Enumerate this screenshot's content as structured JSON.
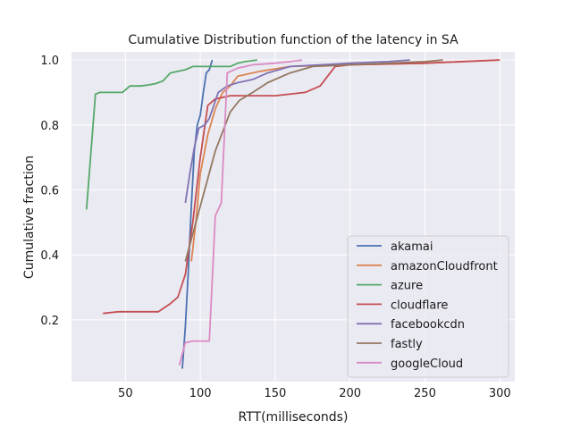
{
  "chart_data": {
    "type": "line",
    "title": "Cumulative Distribution function of the latency in SA",
    "xlabel": "RTT(milliseconds)",
    "ylabel": "Cumulative fraction",
    "xlim": [
      14,
      310
    ],
    "ylim": [
      0.01,
      1.025
    ],
    "xticks": [
      50,
      100,
      150,
      200,
      250,
      300
    ],
    "yticks": [
      0.2,
      0.4,
      0.6,
      0.8,
      1.0
    ],
    "xtick_labels": [
      "50",
      "100",
      "150",
      "200",
      "250",
      "300"
    ],
    "ytick_labels": [
      "0.2",
      "0.4",
      "0.6",
      "0.8",
      "1.0"
    ],
    "grid": true,
    "background": "#eaeaf2",
    "grid_color": "#ffffff",
    "legend_position": "lower-right",
    "series": [
      {
        "name": "akamai",
        "color": "#4c72b0",
        "points": [
          [
            88,
            0.05
          ],
          [
            90,
            0.18
          ],
          [
            92,
            0.35
          ],
          [
            94,
            0.55
          ],
          [
            96,
            0.72
          ],
          [
            98,
            0.8
          ],
          [
            100,
            0.83
          ],
          [
            102,
            0.9
          ],
          [
            104,
            0.96
          ],
          [
            106,
            0.97
          ],
          [
            108,
            1.0
          ]
        ]
      },
      {
        "name": "amazonCloudfront",
        "color": "#dd8452",
        "points": [
          [
            94,
            0.38
          ],
          [
            97,
            0.5
          ],
          [
            100,
            0.65
          ],
          [
            105,
            0.77
          ],
          [
            110,
            0.85
          ],
          [
            115,
            0.9
          ],
          [
            120,
            0.92
          ],
          [
            125,
            0.95
          ],
          [
            140,
            0.965
          ],
          [
            160,
            0.98
          ],
          [
            200,
            0.985
          ],
          [
            250,
            0.99
          ],
          [
            300,
            1.0
          ]
        ]
      },
      {
        "name": "azure",
        "color": "#55a868",
        "points": [
          [
            24,
            0.54
          ],
          [
            30,
            0.895
          ],
          [
            33,
            0.9
          ],
          [
            40,
            0.9
          ],
          [
            48,
            0.9
          ],
          [
            53,
            0.92
          ],
          [
            60,
            0.92
          ],
          [
            65,
            0.923
          ],
          [
            70,
            0.927
          ],
          [
            75,
            0.935
          ],
          [
            80,
            0.96
          ],
          [
            90,
            0.97
          ],
          [
            95,
            0.98
          ],
          [
            110,
            0.98
          ],
          [
            120,
            0.98
          ],
          [
            125,
            0.99
          ],
          [
            130,
            0.995
          ],
          [
            138,
            1.0
          ]
        ]
      },
      {
        "name": "cloudflare",
        "color": "#c44e52",
        "points": [
          [
            35,
            0.22
          ],
          [
            45,
            0.225
          ],
          [
            55,
            0.225
          ],
          [
            65,
            0.225
          ],
          [
            72,
            0.225
          ],
          [
            80,
            0.25
          ],
          [
            85,
            0.27
          ],
          [
            90,
            0.34
          ],
          [
            95,
            0.5
          ],
          [
            100,
            0.7
          ],
          [
            105,
            0.86
          ],
          [
            110,
            0.88
          ],
          [
            120,
            0.89
          ],
          [
            150,
            0.89
          ],
          [
            170,
            0.9
          ],
          [
            180,
            0.92
          ],
          [
            190,
            0.98
          ],
          [
            200,
            0.985
          ],
          [
            250,
            0.99
          ],
          [
            300,
            1.0
          ]
        ]
      },
      {
        "name": "facebookcdn",
        "color": "#8172b3",
        "points": [
          [
            90,
            0.56
          ],
          [
            93,
            0.65
          ],
          [
            96,
            0.73
          ],
          [
            99,
            0.79
          ],
          [
            103,
            0.8
          ],
          [
            106,
            0.82
          ],
          [
            112,
            0.9
          ],
          [
            118,
            0.92
          ],
          [
            125,
            0.93
          ],
          [
            135,
            0.94
          ],
          [
            145,
            0.96
          ],
          [
            160,
            0.98
          ],
          [
            200,
            0.99
          ],
          [
            225,
            0.995
          ],
          [
            240,
            1.0
          ]
        ]
      },
      {
        "name": "fastly",
        "color": "#937860",
        "points": [
          [
            90,
            0.38
          ],
          [
            100,
            0.55
          ],
          [
            110,
            0.72
          ],
          [
            120,
            0.84
          ],
          [
            126,
            0.875
          ],
          [
            135,
            0.9
          ],
          [
            145,
            0.93
          ],
          [
            160,
            0.96
          ],
          [
            175,
            0.98
          ],
          [
            200,
            0.985
          ],
          [
            225,
            0.99
          ],
          [
            250,
            0.995
          ],
          [
            262,
            1.0
          ]
        ]
      },
      {
        "name": "googleCloud",
        "color": "#da8bc3",
        "points": [
          [
            86,
            0.06
          ],
          [
            90,
            0.13
          ],
          [
            95,
            0.135
          ],
          [
            100,
            0.135
          ],
          [
            106,
            0.135
          ],
          [
            110,
            0.52
          ],
          [
            114,
            0.56
          ],
          [
            118,
            0.96
          ],
          [
            125,
            0.975
          ],
          [
            135,
            0.985
          ],
          [
            150,
            0.99
          ],
          [
            160,
            0.995
          ],
          [
            168,
            1.0
          ]
        ]
      }
    ]
  }
}
